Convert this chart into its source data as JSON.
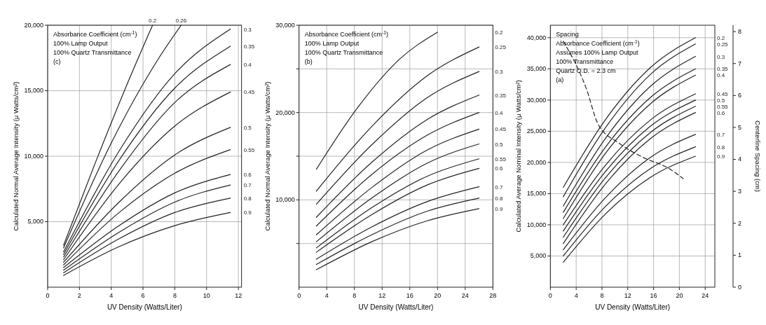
{
  "chart_data": [
    {
      "type": "line",
      "ylabel": "Calculated Normal Average Intensity (μ Watts/cm²)",
      "xlabel": "UV Density (Watts/Liter)",
      "xlim": [
        0,
        12.2
      ],
      "xticks": [
        0,
        2,
        4,
        6,
        8,
        10,
        12
      ],
      "ylim": [
        0,
        20000
      ],
      "yticks": [
        {
          "value": 5000,
          "label": "5,000"
        },
        {
          "value": 10000,
          "label": "10,000"
        },
        {
          "value": 15000,
          "label": "15,000"
        },
        {
          "value": 20000,
          "label": "20,000"
        }
      ],
      "grid": true,
      "annotations": [
        "Absorbance Coefficient (cm$^{-1}$)",
        "100% Lamp Output",
        "100% Quartz Transmittance",
        "(c)"
      ],
      "series": [
        {
          "name": "0.2",
          "color": "#222222",
          "x": [
            1,
            3,
            5,
            6.6
          ],
          "values": [
            3200,
            9500,
            15500,
            20000
          ]
        },
        {
          "name": "0.26",
          "color": "#222222",
          "x": [
            1,
            4,
            7,
            8.4
          ],
          "values": [
            3000,
            11000,
            17500,
            20000
          ]
        },
        {
          "name": "0.3",
          "color": "#222222",
          "x": [
            1,
            4.5,
            8,
            11.5
          ],
          "values": [
            2700,
            10400,
            16300,
            19700
          ]
        },
        {
          "name": "0.35",
          "color": "#222222",
          "x": [
            1,
            4.5,
            8,
            11.5
          ],
          "values": [
            2500,
            9700,
            15200,
            18400
          ]
        },
        {
          "name": "0.4",
          "color": "#222222",
          "x": [
            1,
            4.5,
            8,
            11.5
          ],
          "values": [
            2300,
            8900,
            14100,
            17000
          ]
        },
        {
          "name": "0.45",
          "color": "#222222",
          "x": [
            1,
            4.5,
            8,
            11.5
          ],
          "values": [
            2100,
            7900,
            12300,
            14900
          ]
        },
        {
          "name": "0.5",
          "color": "#222222",
          "x": [
            1,
            4.5,
            8,
            11.5
          ],
          "values": [
            1900,
            6500,
            10100,
            12200
          ]
        },
        {
          "name": "0.55",
          "color": "#222222",
          "x": [
            1,
            4.5,
            8,
            11.5
          ],
          "values": [
            1700,
            5700,
            8700,
            10500
          ]
        },
        {
          "name": "0.6",
          "color": "#222222",
          "x": [
            1,
            4.5,
            8,
            11.5
          ],
          "values": [
            1500,
            4700,
            7200,
            8600
          ]
        },
        {
          "name": "0.7",
          "color": "#222222",
          "x": [
            1,
            4.5,
            8,
            11.5
          ],
          "values": [
            1300,
            4200,
            6500,
            7800
          ]
        },
        {
          "name": "0.8",
          "color": "#222222",
          "x": [
            1,
            4.5,
            8,
            11.5
          ],
          "values": [
            1100,
            3700,
            5700,
            6800
          ]
        },
        {
          "name": "0.9",
          "color": "#222222",
          "x": [
            1,
            4.5,
            8,
            11.5
          ],
          "values": [
            900,
            3100,
            4700,
            5700
          ]
        }
      ]
    },
    {
      "type": "line",
      "ylabel": "Calculated Normal Average Intensity (μ Watts/cm²)",
      "xlabel": "UV Density (Watts/Liter)",
      "xlim": [
        0,
        28
      ],
      "xticks": [
        0,
        4,
        8,
        12,
        16,
        20,
        24,
        28
      ],
      "ylim": [
        0,
        30000
      ],
      "yticks": [
        {
          "value": 5000,
          "label": null
        },
        {
          "value": 10000,
          "label": "10,000"
        },
        {
          "value": 15000,
          "label": null
        },
        {
          "value": 20000,
          "label": "20,000"
        },
        {
          "value": 25000,
          "label": null
        },
        {
          "value": 30000,
          "label": "30,000"
        }
      ],
      "grid": true,
      "annotations": [
        "Absorbance Coefficient (cm$^{-1}$)",
        "100% Lamp Output",
        "100% Quartz Transmittance",
        "(b)"
      ],
      "series": [
        {
          "name": "0.2",
          "color": "#222222",
          "x": [
            2.5,
            8.5,
            14.5,
            20
          ],
          "values": [
            13500,
            20600,
            26100,
            29200
          ]
        },
        {
          "name": "0.25",
          "color": "#222222",
          "x": [
            2.5,
            10.5,
            18.5,
            26
          ],
          "values": [
            11000,
            18400,
            24200,
            27500
          ]
        },
        {
          "name": "0.3",
          "color": "#222222",
          "x": [
            2.5,
            10.5,
            18.5,
            26
          ],
          "values": [
            9500,
            16300,
            21700,
            24700
          ]
        },
        {
          "name": "0.35",
          "color": "#222222",
          "x": [
            2.5,
            10.5,
            18.5,
            26
          ],
          "values": [
            8000,
            14300,
            19200,
            22000
          ]
        },
        {
          "name": "0.4",
          "color": "#222222",
          "x": [
            2.5,
            10.5,
            18.5,
            26
          ],
          "values": [
            7000,
            12900,
            17400,
            20000
          ]
        },
        {
          "name": "0.45",
          "color": "#222222",
          "x": [
            2.5,
            10.5,
            18.5,
            26
          ],
          "values": [
            6000,
            11400,
            15700,
            18100
          ]
        },
        {
          "name": "0.5",
          "color": "#222222",
          "x": [
            2.5,
            10.5,
            18.5,
            26
          ],
          "values": [
            5200,
            10200,
            14200,
            16400
          ]
        },
        {
          "name": "0.55",
          "color": "#222222",
          "x": [
            2.5,
            10.5,
            18.5,
            26
          ],
          "values": [
            4500,
            9100,
            12700,
            14700
          ]
        },
        {
          "name": "0.6",
          "color": "#222222",
          "x": [
            2.5,
            10.5,
            18.5,
            26
          ],
          "values": [
            4000,
            8300,
            11700,
            13600
          ]
        },
        {
          "name": "0.7",
          "color": "#222222",
          "x": [
            2.5,
            10.5,
            18.5,
            26
          ],
          "values": [
            3200,
            6900,
            9800,
            11500
          ]
        },
        {
          "name": "0.8",
          "color": "#222222",
          "x": [
            2.5,
            10.5,
            18.5,
            26
          ],
          "values": [
            2600,
            6000,
            8700,
            10200
          ]
        },
        {
          "name": "0.9",
          "color": "#222222",
          "x": [
            2.5,
            10.5,
            18.5,
            26
          ],
          "values": [
            2000,
            5200,
            7600,
            9000
          ]
        }
      ]
    },
    {
      "type": "line",
      "ylabel": "Calculated Average Nominal Intensity (μ Watts/cm²)",
      "xlabel": "UV Density (Watts/Liter)",
      "y2label": "Centerline Spacing (cm)",
      "xlim": [
        0,
        25.5
      ],
      "xticks": [
        0,
        4,
        8,
        12,
        16,
        20,
        24
      ],
      "ylim": [
        0,
        42000
      ],
      "yticks": [
        {
          "value": 5000,
          "label": "5,000"
        },
        {
          "value": 10000,
          "label": "10,000"
        },
        {
          "value": 15000,
          "label": "15,000"
        },
        {
          "value": 20000,
          "label": "20,000"
        },
        {
          "value": 25000,
          "label": "25,000"
        },
        {
          "value": 30000,
          "label": "30,000"
        },
        {
          "value": 35000,
          "label": "35,000"
        },
        {
          "value": 40000,
          "label": "40,000"
        }
      ],
      "y2lim": [
        0,
        8.2
      ],
      "y2ticks": [
        0,
        1,
        2,
        3,
        4,
        5,
        6,
        7,
        8
      ],
      "grid": true,
      "annotations": [
        "Spacing",
        "Absorbance Coefficient (cm$^{-1}$)",
        "Assumes 100% Lamp Output",
        "100% Transmittance",
        "Quartz O.D. = 2.3 cm",
        "(a)"
      ],
      "series": [
        {
          "name": "0.2",
          "color": "#222222",
          "x": [
            2,
            8.5,
            15.5,
            22.5
          ],
          "values": [
            16000,
            26800,
            35200,
            40000
          ]
        },
        {
          "name": "0.25",
          "color": "#222222",
          "x": [
            2,
            8.5,
            15.5,
            22.5
          ],
          "values": [
            14500,
            25500,
            34100,
            39000
          ]
        },
        {
          "name": "0.3",
          "color": "#222222",
          "x": [
            2,
            8.5,
            15.5,
            22.5
          ],
          "values": [
            13000,
            23800,
            32200,
            37000
          ]
        },
        {
          "name": "0.35",
          "color": "#222222",
          "x": [
            2,
            8.5,
            15.5,
            22.5
          ],
          "values": [
            12000,
            22400,
            30400,
            35000
          ]
        },
        {
          "name": "0.4",
          "color": "#222222",
          "x": [
            2,
            8.5,
            15.5,
            22.5
          ],
          "values": [
            11000,
            21400,
            29400,
            34000
          ]
        },
        {
          "name": "0.45",
          "color": "#222222",
          "x": [
            2,
            8.5,
            15.5,
            22.5
          ],
          "values": [
            10000,
            19500,
            26800,
            31000
          ]
        },
        {
          "name": "0.5",
          "color": "#222222",
          "x": [
            2,
            8.5,
            15.5,
            22.5
          ],
          "values": [
            9000,
            18500,
            25800,
            30000
          ]
        },
        {
          "name": "0.55",
          "color": "#222222",
          "x": [
            2,
            8.5,
            15.5,
            22.5
          ],
          "values": [
            8000,
            17500,
            24800,
            29000
          ]
        },
        {
          "name": "0.6",
          "color": "#222222",
          "x": [
            2,
            8.5,
            15.5,
            22.5
          ],
          "values": [
            7000,
            16500,
            23800,
            28000
          ]
        },
        {
          "name": "0.7",
          "color": "#222222",
          "x": [
            2,
            8.5,
            15.5,
            22.5
          ],
          "values": [
            6000,
            14300,
            20800,
            24500
          ]
        },
        {
          "name": "0.8",
          "color": "#222222",
          "x": [
            2,
            8.5,
            15.5,
            22.5
          ],
          "values": [
            5000,
            12900,
            19000,
            22500
          ]
        },
        {
          "name": "0.9",
          "color": "#222222",
          "x": [
            2,
            8.5,
            15.5,
            22.5
          ],
          "values": [
            4000,
            11700,
            17600,
            21000
          ]
        },
        {
          "color": "#222222",
          "axis": "y2",
          "line_style": "dashed",
          "x": [
            2,
            5.6,
            7.4,
            10.7,
            14,
            18.5,
            20.6
          ],
          "values": [
            7.7,
            6.2,
            5.1,
            4.5,
            4.1,
            3.7,
            3.4
          ]
        }
      ]
    }
  ]
}
